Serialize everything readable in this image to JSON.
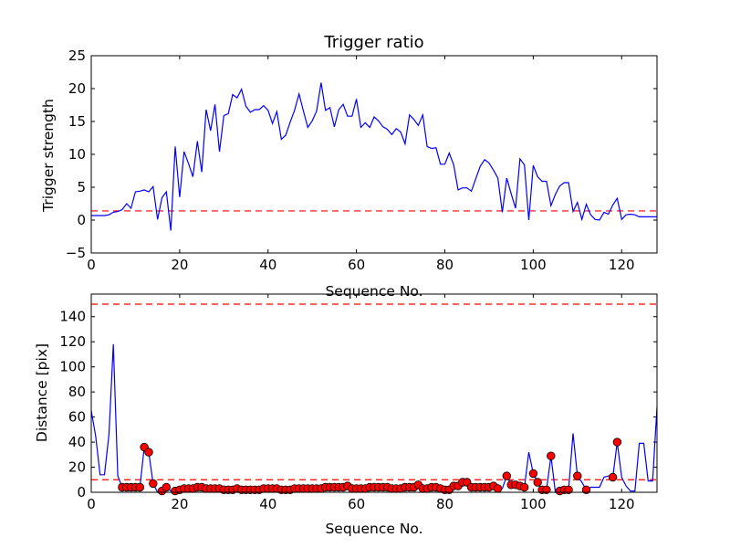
{
  "chart_data": [
    {
      "type": "line",
      "title": "Trigger ratio",
      "xlabel": "Sequence No.",
      "ylabel": "Trigger strength",
      "xlim": [
        0,
        128
      ],
      "ylim": [
        -5,
        25
      ],
      "xticks": [
        0,
        20,
        40,
        60,
        80,
        100,
        120
      ],
      "yticks": [
        -5,
        0,
        5,
        10,
        15,
        20,
        25
      ],
      "grid": false,
      "series": [
        {
          "color": "#0000ff",
          "x": [
            0,
            1,
            2,
            3,
            4,
            5,
            6,
            7,
            8,
            9,
            10,
            11,
            12,
            13,
            14,
            15,
            16,
            17,
            18,
            19,
            20,
            21,
            22,
            23,
            24,
            25,
            26,
            27,
            28,
            29,
            30,
            31,
            32,
            33,
            34,
            35,
            36,
            37,
            38,
            39,
            40,
            41,
            42,
            43,
            44,
            45,
            46,
            47,
            48,
            49,
            50,
            51,
            52,
            53,
            54,
            55,
            56,
            57,
            58,
            59,
            60,
            61,
            62,
            63,
            64,
            65,
            66,
            67,
            68,
            69,
            70,
            71,
            72,
            73,
            74,
            75,
            76,
            77,
            78,
            79,
            80,
            81,
            82,
            83,
            84,
            85,
            86,
            87,
            88,
            89,
            90,
            91,
            92,
            93,
            94,
            95,
            96,
            97,
            98,
            99,
            100,
            101,
            102,
            103,
            104,
            105,
            106,
            107,
            108,
            109,
            110,
            111,
            112,
            113,
            114,
            115,
            116,
            117,
            118,
            119,
            120,
            121,
            122,
            123,
            124,
            125,
            126,
            127,
            128
          ],
          "y": [
            0.7,
            0.7,
            0.7,
            0.7,
            0.8,
            1.2,
            1.3,
            1.6,
            2.5,
            1.8,
            4.3,
            4.4,
            4.6,
            4.3,
            5.1,
            0.1,
            3.4,
            4.3,
            -1.6,
            11.2,
            3.5,
            10.4,
            8.6,
            6.6,
            12.0,
            7.3,
            16.8,
            13.6,
            17.6,
            10.4,
            15.9,
            16.2,
            19.1,
            18.6,
            19.9,
            17.3,
            16.4,
            16.8,
            16.8,
            17.4,
            16.7,
            14.7,
            16.5,
            12.3,
            12.9,
            14.9,
            16.7,
            19.2,
            16.6,
            14.1,
            15.1,
            16.6,
            20.9,
            16.7,
            17.1,
            14.2,
            16.8,
            17.6,
            15.8,
            15.8,
            18.4,
            14.1,
            14.8,
            14.1,
            15.7,
            15.1,
            14.2,
            13.8,
            13.0,
            13.9,
            13.4,
            11.6,
            16.0,
            15.3,
            14.4,
            16.0,
            11.2,
            10.9,
            11.0,
            8.5,
            8.5,
            10.2,
            8.4,
            4.6,
            4.9,
            4.9,
            4.4,
            6.3,
            8.2,
            9.2,
            8.7,
            7.6,
            6.4,
            1.2,
            6.4,
            4.0,
            1.8,
            9.3,
            8.4,
            0.0,
            8.3,
            6.6,
            5.9,
            5.9,
            2.2,
            3.9,
            5.2,
            5.7,
            5.7,
            1.3,
            2.7,
            0.1,
            2.4,
            0.8,
            0.1,
            0.0,
            1.2,
            0.9,
            2.3,
            3.3,
            0.1,
            0.8,
            0.9,
            0.8,
            0.5,
            0.5,
            0.5,
            0.5,
            0.5
          ]
        }
      ],
      "threshold": {
        "y": 1.4,
        "color": "#ff0000",
        "style": "dashed"
      }
    },
    {
      "type": "line",
      "title": "",
      "xlabel": "Sequence No.",
      "ylabel": "Distance [pix]",
      "xlim": [
        0,
        128
      ],
      "ylim": [
        0,
        158
      ],
      "xticks": [
        0,
        20,
        40,
        60,
        80,
        100,
        120
      ],
      "yticks": [
        0,
        20,
        40,
        60,
        80,
        100,
        120,
        140
      ],
      "grid": false,
      "series": [
        {
          "color": "#0000ff",
          "x": [
            0,
            1,
            2,
            3,
            4,
            5,
            6,
            7,
            8,
            9,
            10,
            11,
            12,
            13,
            14,
            15,
            16,
            17,
            18,
            19,
            20,
            21,
            22,
            23,
            24,
            25,
            26,
            27,
            28,
            29,
            30,
            31,
            32,
            33,
            34,
            35,
            36,
            37,
            38,
            39,
            40,
            41,
            42,
            43,
            44,
            45,
            46,
            47,
            48,
            49,
            50,
            51,
            52,
            53,
            54,
            55,
            56,
            57,
            58,
            59,
            60,
            61,
            62,
            63,
            64,
            65,
            66,
            67,
            68,
            69,
            70,
            71,
            72,
            73,
            74,
            75,
            76,
            77,
            78,
            79,
            80,
            81,
            82,
            83,
            84,
            85,
            86,
            87,
            88,
            89,
            90,
            91,
            92,
            93,
            94,
            95,
            96,
            97,
            98,
            99,
            100,
            101,
            102,
            103,
            104,
            105,
            106,
            107,
            108,
            109,
            110,
            111,
            112,
            113,
            114,
            115,
            116,
            117,
            118,
            119,
            120,
            121,
            122,
            123,
            124,
            125,
            126,
            127,
            128
          ],
          "y": [
            65,
            45,
            14,
            14,
            46,
            118,
            13,
            4,
            4,
            4,
            4,
            4,
            36,
            32,
            7,
            0,
            1,
            4,
            1,
            2,
            3,
            3,
            3,
            3,
            4,
            4,
            3,
            3,
            3,
            3,
            2,
            2,
            2,
            3,
            2,
            2,
            2,
            2,
            2,
            3,
            3,
            3,
            3,
            2,
            2,
            2,
            3,
            3,
            3,
            3,
            3,
            3,
            3,
            4,
            4,
            4,
            4,
            4,
            5,
            3,
            3,
            3,
            3,
            4,
            4,
            4,
            4,
            4,
            3,
            3,
            3,
            4,
            4,
            4,
            6,
            3,
            3,
            4,
            4,
            3,
            2,
            2,
            5,
            5,
            8,
            8,
            4,
            4,
            4,
            4,
            4,
            5,
            3,
            3,
            13,
            6,
            6,
            5,
            4,
            32,
            15,
            8,
            2,
            2,
            29,
            0,
            1,
            2,
            2,
            47,
            13,
            8,
            2,
            4,
            4,
            4,
            12,
            13,
            12,
            40,
            12,
            5,
            1,
            1,
            39,
            39,
            9,
            9,
            68
          ],
          "marker_x": [
            7,
            8,
            9,
            10,
            11,
            12,
            13,
            14,
            16,
            17,
            19,
            20,
            21,
            22,
            23,
            24,
            25,
            26,
            27,
            28,
            29,
            30,
            31,
            32,
            33,
            34,
            35,
            36,
            37,
            38,
            39,
            40,
            41,
            42,
            43,
            44,
            45,
            46,
            47,
            48,
            49,
            50,
            51,
            52,
            53,
            54,
            55,
            56,
            57,
            58,
            59,
            60,
            61,
            62,
            63,
            64,
            65,
            66,
            67,
            68,
            69,
            70,
            71,
            72,
            73,
            74,
            75,
            76,
            77,
            78,
            79,
            80,
            81,
            82,
            83,
            84,
            85,
            86,
            87,
            88,
            89,
            90,
            91,
            92,
            94,
            95,
            96,
            97,
            98,
            100,
            101,
            102,
            103,
            104,
            106,
            107,
            108,
            110,
            112,
            118,
            119
          ],
          "marker_y": [
            4,
            4,
            4,
            4,
            4,
            36,
            32,
            7,
            1,
            4,
            1,
            2,
            3,
            3,
            3,
            4,
            4,
            3,
            3,
            3,
            3,
            2,
            2,
            2,
            3,
            2,
            2,
            2,
            2,
            2,
            3,
            3,
            3,
            3,
            2,
            2,
            2,
            3,
            3,
            3,
            3,
            3,
            3,
            3,
            4,
            4,
            4,
            4,
            4,
            5,
            3,
            3,
            3,
            3,
            4,
            4,
            4,
            4,
            4,
            3,
            3,
            3,
            4,
            4,
            4,
            6,
            3,
            3,
            4,
            4,
            3,
            2,
            2,
            5,
            5,
            8,
            8,
            4,
            4,
            4,
            4,
            4,
            5,
            3,
            13,
            6,
            6,
            5,
            4,
            15,
            8,
            2,
            2,
            29,
            1,
            2,
            2,
            13,
            2,
            12,
            40
          ],
          "marker_color": "#ff0000"
        }
      ],
      "thresholds": [
        {
          "y": 150,
          "color": "#ff0000",
          "style": "dashed"
        },
        {
          "y": 10,
          "color": "#ff0000",
          "style": "dashed"
        }
      ]
    }
  ]
}
